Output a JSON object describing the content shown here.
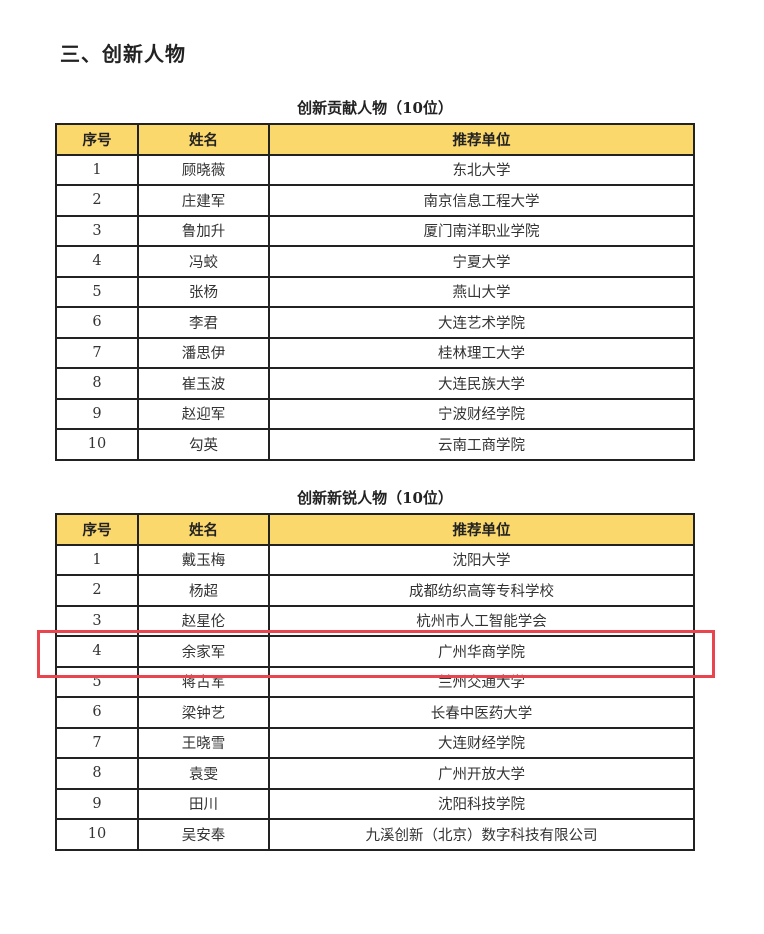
{
  "heading": "三、创新人物",
  "columns": [
    "序号",
    "姓名",
    "推荐单位"
  ],
  "tables": [
    {
      "caption": "创新贡献人物（10位）",
      "rows": [
        [
          "1",
          "顾晓薇",
          "东北大学"
        ],
        [
          "2",
          "庄建军",
          "南京信息工程大学"
        ],
        [
          "3",
          "鲁加升",
          "厦门南洋职业学院"
        ],
        [
          "4",
          "冯蛟",
          "宁夏大学"
        ],
        [
          "5",
          "张杨",
          "燕山大学"
        ],
        [
          "6",
          "李君",
          "大连艺术学院"
        ],
        [
          "7",
          "潘思伊",
          "桂林理工大学"
        ],
        [
          "8",
          "崔玉波",
          "大连民族大学"
        ],
        [
          "9",
          "赵迎军",
          "宁波财经学院"
        ],
        [
          "10",
          "勾英",
          "云南工商学院"
        ]
      ]
    },
    {
      "caption": "创新新锐人物（10位）",
      "rows": [
        [
          "1",
          "戴玉梅",
          "沈阳大学"
        ],
        [
          "2",
          "杨超",
          "成都纺织高等专科学校"
        ],
        [
          "3",
          "赵星伦",
          "杭州市人工智能学会"
        ],
        [
          "4",
          "余家军",
          "广州华商学院"
        ],
        [
          "5",
          "蒋占军",
          "兰州交通大学"
        ],
        [
          "6",
          "梁钟艺",
          "长春中医药大学"
        ],
        [
          "7",
          "王晓雪",
          "大连财经学院"
        ],
        [
          "8",
          "袁雯",
          "广州开放大学"
        ],
        [
          "9",
          "田川",
          "沈阳科技学院"
        ],
        [
          "10",
          "吴安奉",
          "九溪创新（北京）数字科技有限公司"
        ]
      ]
    }
  ],
  "highlighted_row": {
    "table": 1,
    "row": 4
  },
  "colors": {
    "header_bg": "#fbd86c",
    "highlight": "#e8454f",
    "border": "#222222"
  }
}
